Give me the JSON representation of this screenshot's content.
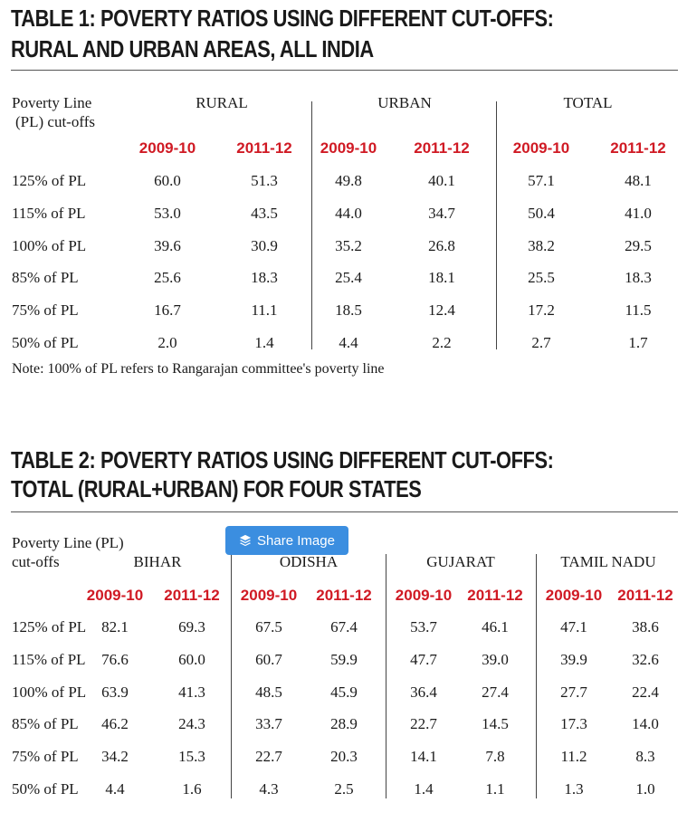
{
  "table1": {
    "title_line1": "TABLE 1: POVERTY RATIOS USING DIFFERENT CUT-OFFS:",
    "title_line2": "RURAL AND URBAN AREAS, ALL INDIA",
    "label_header_line1": "Poverty Line",
    "label_header_line2": "(PL) cut-offs",
    "groups": [
      "RURAL",
      "URBAN",
      "TOTAL"
    ],
    "years": [
      "2009-10",
      "2011-12",
      "2009-10",
      "2011-12",
      "2009-10",
      "2011-12"
    ],
    "rows": [
      {
        "label": "125% of PL",
        "values": [
          "60.0",
          "51.3",
          "49.8",
          "40.1",
          "57.1",
          "48.1"
        ]
      },
      {
        "label": "115% of PL",
        "values": [
          "53.0",
          "43.5",
          "44.0",
          "34.7",
          "50.4",
          "41.0"
        ]
      },
      {
        "label": "100% of PL",
        "values": [
          "39.6",
          "30.9",
          "35.2",
          "26.8",
          "38.2",
          "29.5"
        ]
      },
      {
        "label": "85% of PL",
        "values": [
          "25.6",
          "18.3",
          "25.4",
          "18.1",
          "25.5",
          "18.3"
        ]
      },
      {
        "label": "75% of PL",
        "values": [
          "16.7",
          "11.1",
          "18.5",
          "12.4",
          "17.2",
          "11.5"
        ]
      },
      {
        "label": "50% of PL",
        "values": [
          "2.0",
          "1.4",
          "4.4",
          "2.2",
          "2.7",
          "1.7"
        ]
      }
    ],
    "note": "Note: 100% of PL refers to Rangarajan committee's poverty line"
  },
  "table2": {
    "title_line1": "TABLE 2: POVERTY RATIOS USING DIFFERENT CUT-OFFS:",
    "title_line2": "TOTAL (RURAL+URBAN) FOR FOUR STATES",
    "label_header_line1": "Poverty Line (PL)",
    "label_header_line2": "cut-offs",
    "groups": [
      "BIHAR",
      "ODISHA",
      "GUJARAT",
      "TAMIL NADU"
    ],
    "years": [
      "2009-10",
      "2011-12",
      "2009-10",
      "2011-12",
      "2009-10",
      "2011-12",
      "2009-10",
      "2011-12"
    ],
    "rows": [
      {
        "label": "125% of PL",
        "values": [
          "82.1",
          "69.3",
          "67.5",
          "67.4",
          "53.7",
          "46.1",
          "47.1",
          "38.6"
        ]
      },
      {
        "label": "115% of PL",
        "values": [
          "76.6",
          "60.0",
          "60.7",
          "59.9",
          "47.7",
          "39.0",
          "39.9",
          "32.6"
        ]
      },
      {
        "label": "100% of PL",
        "values": [
          "63.9",
          "41.3",
          "48.5",
          "45.9",
          "36.4",
          "27.4",
          "27.7",
          "22.4"
        ]
      },
      {
        "label": "85% of PL",
        "values": [
          "46.2",
          "24.3",
          "33.7",
          "28.9",
          "22.7",
          "14.5",
          "17.3",
          "14.0"
        ]
      },
      {
        "label": "75% of PL",
        "values": [
          "34.2",
          "15.3",
          "22.7",
          "20.3",
          "14.1",
          "7.8",
          "11.2",
          "8.3"
        ]
      },
      {
        "label": "50% of PL",
        "values": [
          "4.4",
          "1.6",
          "4.3",
          "2.5",
          "1.4",
          "1.1",
          "1.3",
          "1.0"
        ]
      }
    ]
  },
  "share_button": {
    "label": "Share Image",
    "icon": "layers-icon",
    "color": "#3b8ee0"
  },
  "colors": {
    "year_header": "#d01a24",
    "text": "#1a1a1a"
  }
}
